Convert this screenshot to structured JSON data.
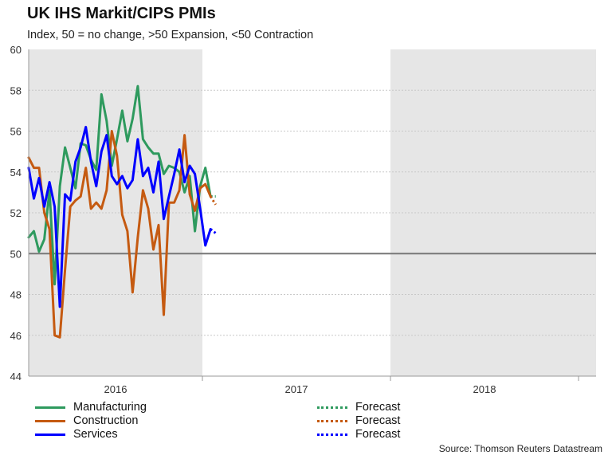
{
  "chart_data": {
    "type": "line",
    "title": "UK IHS Markit/CIPS PMIs",
    "subtitle": "Index, 50 = no change, >50 Expansion, <50 Contraction",
    "source": "Source: Thomson Reuters Datastream",
    "x_labels": [
      "2016",
      "2017",
      "2018"
    ],
    "ylim": [
      44,
      60
    ],
    "y_ticks": [
      44,
      46,
      48,
      50,
      52,
      54,
      56,
      58,
      60
    ],
    "reference_line": 50,
    "grid": true,
    "shaded_years": [
      "2016",
      "2018"
    ],
    "series": [
      {
        "name": "Manufacturing",
        "color": "#2e9a5e",
        "values": [
          50.8,
          51.1,
          50.1,
          50.7,
          53.1,
          48.5,
          53.3,
          55.2,
          54.2,
          53.2,
          55.4,
          55.3,
          54.6,
          54.1,
          57.8,
          56.5,
          54.3,
          55.6,
          57.0,
          55.5,
          56.6,
          58.2,
          55.6,
          55.2,
          54.9,
          54.9,
          53.9,
          54.3,
          54.2,
          54.0,
          53.0,
          53.8,
          51.1,
          53.3,
          54.2,
          52.8
        ],
        "forecast": [
          52.8
        ]
      },
      {
        "name": "Construction",
        "color": "#c55a11",
        "values": [
          54.7,
          54.2,
          54.2,
          52.0,
          51.2,
          46.0,
          45.9,
          49.2,
          52.3,
          52.6,
          52.8,
          54.2,
          52.2,
          52.5,
          52.2,
          53.1,
          56.0,
          54.8,
          51.9,
          51.1,
          48.1,
          50.8,
          53.1,
          52.2,
          50.2,
          51.4,
          47.0,
          52.5,
          52.5,
          53.1,
          55.8,
          52.9,
          52.1,
          53.2,
          53.4,
          52.8
        ],
        "forecast": [
          52.4
        ]
      },
      {
        "name": "Services",
        "color": "#0000ff",
        "values": [
          54.2,
          52.7,
          53.7,
          52.3,
          53.5,
          52.3,
          47.4,
          52.9,
          52.6,
          54.5,
          55.2,
          56.2,
          54.5,
          53.3,
          55.0,
          55.8,
          53.8,
          53.4,
          53.8,
          53.2,
          53.6,
          55.6,
          53.8,
          54.2,
          53.0,
          54.5,
          51.7,
          52.8,
          53.9,
          55.1,
          53.5,
          54.3,
          53.9,
          52.2,
          50.4,
          51.2
        ],
        "forecast": [
          51.0
        ]
      }
    ],
    "legend": [
      {
        "label": "Manufacturing",
        "color": "#2e9a5e",
        "style": "solid"
      },
      {
        "label": "Construction",
        "color": "#c55a11",
        "style": "solid"
      },
      {
        "label": "Services",
        "color": "#0000ff",
        "style": "solid"
      },
      {
        "label": "Forecast",
        "color": "#2e9a5e",
        "style": "dotted"
      },
      {
        "label": "Forecast",
        "color": "#c55a11",
        "style": "dotted"
      },
      {
        "label": "Forecast",
        "color": "#0000ff",
        "style": "dotted"
      }
    ]
  }
}
